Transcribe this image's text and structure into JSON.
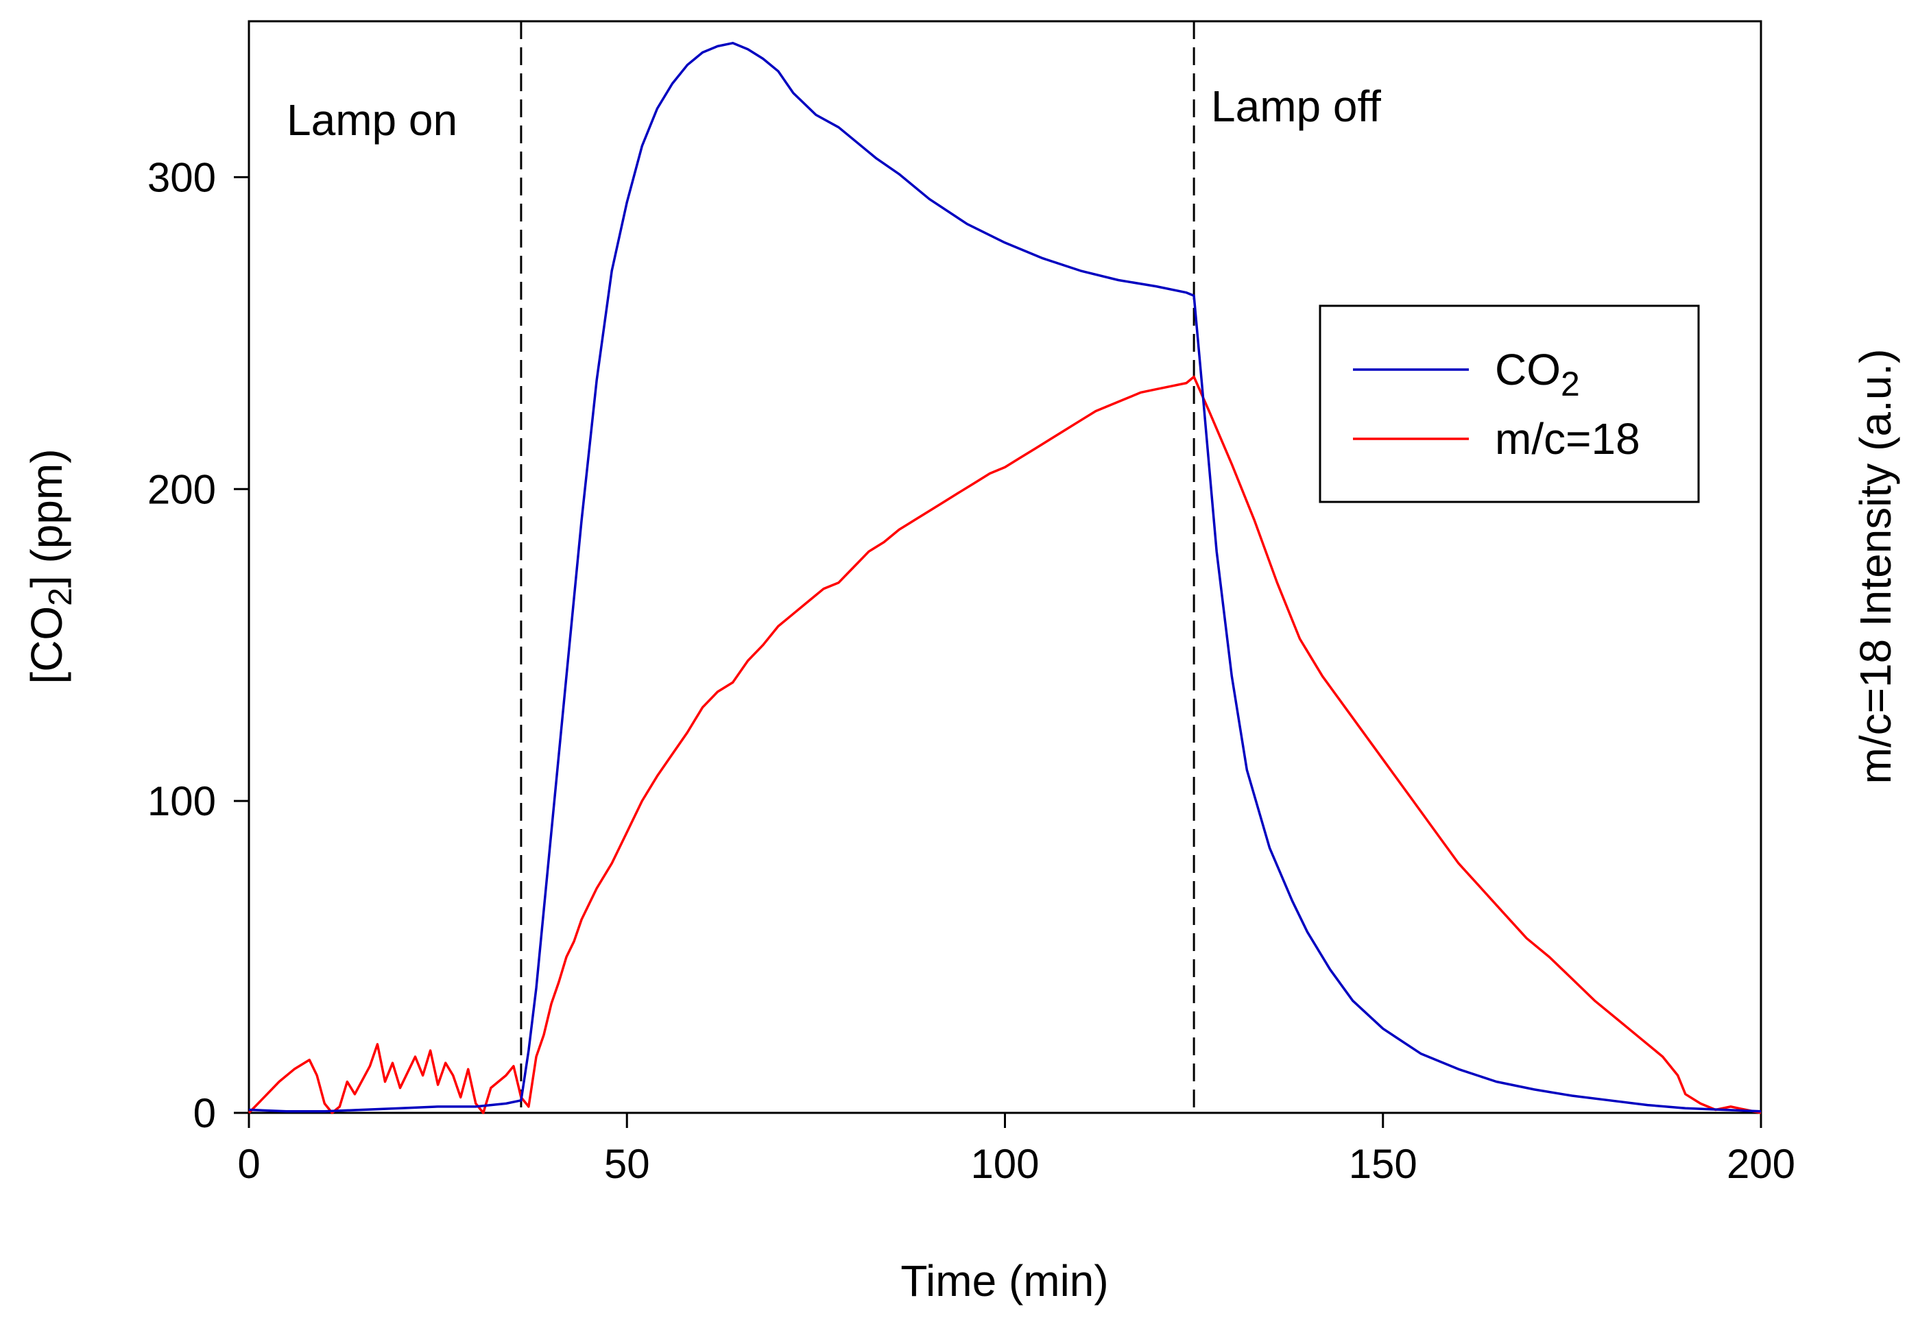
{
  "chart_data": {
    "type": "line",
    "title": "",
    "xlabel": "Time (min)",
    "ylabel_main": "[CO",
    "ylabel_sub": "2",
    "ylabel_tail": "] (ppm)",
    "ylabel_right": "m/c=18 Intensity (a.u.)",
    "xlim": [
      0,
      200
    ],
    "ylim": [
      0,
      350
    ],
    "grid": false,
    "legend_position": "right",
    "x_ticks": [
      0,
      50,
      100,
      150,
      200
    ],
    "x_tick_labels": [
      "0",
      "50",
      "100",
      "150",
      "200"
    ],
    "y_ticks": [
      0,
      100,
      200,
      300
    ],
    "y_tick_labels": [
      "0",
      "100",
      "200",
      "300"
    ],
    "annotations": [
      {
        "text": "Lamp on",
        "x": 36
      },
      {
        "text": "Lamp off",
        "x": 125
      }
    ],
    "vlines": [
      36,
      125
    ],
    "series": [
      {
        "name": "CO2",
        "legend_main": "CO",
        "legend_sub": "2",
        "color": "#0000c0",
        "x": [
          0,
          5,
          10,
          15,
          20,
          25,
          30,
          34,
          36,
          37,
          38,
          40,
          42,
          44,
          46,
          48,
          50,
          52,
          54,
          56,
          58,
          60,
          62,
          64,
          66,
          68,
          70,
          72,
          75,
          78,
          80,
          83,
          86,
          90,
          95,
          100,
          105,
          110,
          115,
          120,
          124,
          125,
          126,
          128,
          130,
          132,
          135,
          138,
          140,
          143,
          146,
          150,
          155,
          160,
          165,
          170,
          175,
          180,
          185,
          190,
          195,
          200
        ],
        "values": [
          1,
          0.5,
          0.5,
          1,
          1.5,
          2,
          2,
          3,
          4,
          20,
          40,
          90,
          140,
          190,
          235,
          270,
          292,
          310,
          322,
          330,
          336,
          340,
          342,
          343,
          341,
          338,
          334,
          327,
          320,
          316,
          312,
          306,
          301,
          293,
          285,
          279,
          274,
          270,
          267,
          265,
          263,
          262,
          235,
          180,
          140,
          110,
          85,
          68,
          58,
          46,
          36,
          27,
          19,
          14,
          10,
          7.5,
          5.5,
          4,
          2.5,
          1.5,
          1,
          0.5
        ]
      },
      {
        "name": "m/c=18",
        "legend_main": "m/c=18",
        "color": "#ff0000",
        "x": [
          0,
          2,
          4,
          6,
          8,
          9,
          10,
          11,
          12,
          13,
          14,
          16,
          17,
          18,
          19,
          20,
          22,
          23,
          24,
          25,
          26,
          27,
          28,
          29,
          30,
          31,
          32,
          33,
          34,
          35,
          36,
          37,
          38,
          39,
          40,
          41,
          42,
          43,
          44,
          46,
          48,
          50,
          52,
          54,
          56,
          58,
          60,
          62,
          64,
          66,
          68,
          70,
          72,
          74,
          76,
          78,
          80,
          82,
          84,
          86,
          88,
          90,
          92,
          94,
          96,
          98,
          100,
          102,
          104,
          106,
          108,
          110,
          112,
          114,
          116,
          118,
          120,
          122,
          124,
          125,
          127,
          130,
          133,
          136,
          139,
          142,
          145,
          148,
          151,
          154,
          157,
          160,
          163,
          166,
          169,
          172,
          175,
          178,
          181,
          184,
          187,
          189,
          190,
          192,
          194,
          196,
          198,
          200
        ],
        "values": [
          0,
          5,
          10,
          14,
          17,
          12,
          3,
          0,
          2,
          10,
          6,
          15,
          22,
          10,
          16,
          8,
          18,
          12,
          20,
          9,
          16,
          12,
          5,
          14,
          3,
          0,
          8,
          10,
          12,
          15,
          5,
          2,
          18,
          25,
          35,
          42,
          50,
          55,
          62,
          72,
          80,
          90,
          100,
          108,
          115,
          122,
          130,
          135,
          138,
          145,
          150,
          156,
          160,
          164,
          168,
          170,
          175,
          180,
          183,
          187,
          190,
          193,
          196,
          199,
          202,
          205,
          207,
          210,
          213,
          216,
          219,
          222,
          225,
          227,
          229,
          231,
          232,
          233,
          234,
          236,
          225,
          208,
          190,
          170,
          152,
          140,
          130,
          120,
          110,
          100,
          90,
          80,
          72,
          64,
          56,
          50,
          43,
          36,
          30,
          24,
          18,
          12,
          6,
          3,
          1,
          2,
          1,
          0
        ]
      }
    ]
  }
}
